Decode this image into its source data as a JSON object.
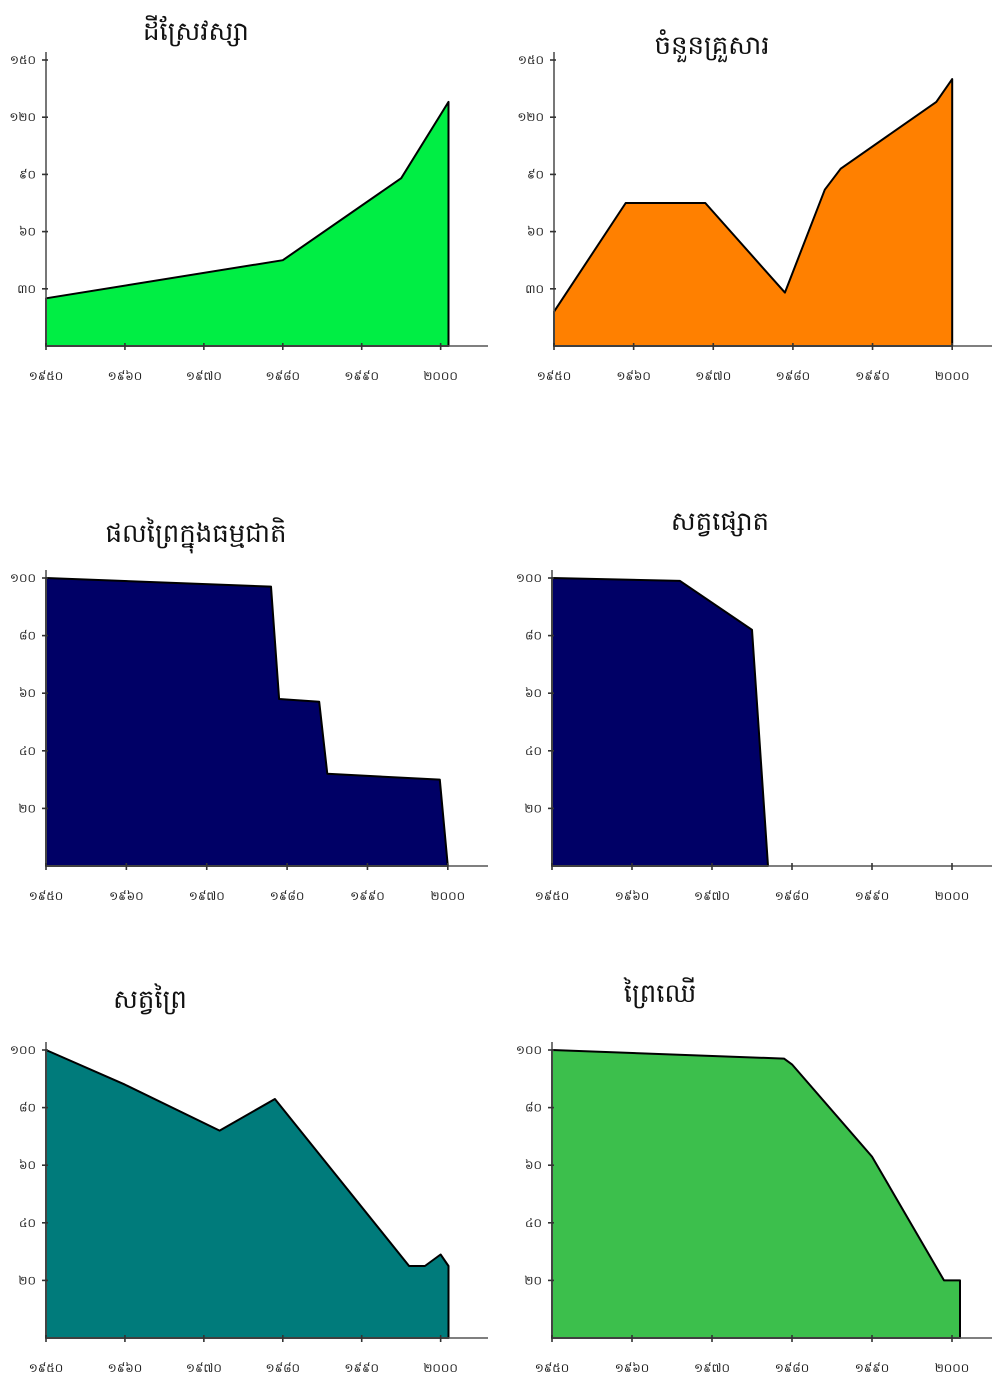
{
  "chart_data": [
    {
      "type": "area",
      "title": "ដីស្រែវស្សា",
      "color": "#00ee44",
      "x_tick_labels": [
        "១៩៥០",
        "១៩៦០",
        "១៩៧០",
        "១៩៨០",
        "១៩៩០",
        "២០០០"
      ],
      "y_tick_labels": [
        "១៥០",
        "១២០",
        "៩០",
        "៦០",
        "៣០"
      ],
      "x": [
        1950,
        1980,
        1995,
        2001,
        2001
      ],
      "y": [
        25,
        45,
        88,
        128,
        0
      ],
      "xlim": [
        1950,
        2006
      ],
      "ylim": [
        0,
        150
      ]
    },
    {
      "type": "area",
      "title": "ចំនួនគ្រួសារ",
      "color": "#ff8000",
      "x_tick_labels": [
        "១៩៥០",
        "១៩៦០",
        "១៩៧០",
        "១៩៨០",
        "១៩៩០",
        "២០០០"
      ],
      "y_tick_labels": [
        "១៥០",
        "១២០",
        "៩០",
        "៦០",
        "៣០"
      ],
      "x": [
        1950,
        1959,
        1969,
        1979,
        1984,
        1986,
        1998,
        2000,
        2000
      ],
      "y": [
        18,
        75,
        75,
        28,
        82,
        93,
        128,
        140,
        0
      ],
      "xlim": [
        1950,
        2005
      ],
      "ylim": [
        0,
        150
      ]
    },
    {
      "type": "area",
      "title": "ផលព្រៃក្នុងធម្មជាតិ",
      "color": "#000066",
      "x_tick_labels": [
        "១៩៥០",
        "១៩៦០",
        "១៩៧០",
        "១៩៨០",
        "១៩៩០",
        "២០០០"
      ],
      "y_tick_labels": [
        "១០០",
        "៨០",
        "៦០",
        "៤០",
        "២០"
      ],
      "x": [
        1950,
        1978,
        1979,
        1984,
        1985,
        1999,
        2000,
        2000
      ],
      "y": [
        100,
        97,
        58,
        57,
        32,
        30,
        0,
        0
      ],
      "xlim": [
        1950,
        2005
      ],
      "ylim": [
        0,
        100
      ]
    },
    {
      "type": "area",
      "title": "សត្វផ្សោត",
      "color": "#000066",
      "x_tick_labels": [
        "១៩៥០",
        "១៩៦០",
        "១៩៧០",
        "១៩៨០",
        "១៩៩០",
        "២០០០"
      ],
      "y_tick_labels": [
        "១០០",
        "៨០",
        "៦០",
        "៤០",
        "២០"
      ],
      "x": [
        1950,
        1966,
        1975,
        1977
      ],
      "y": [
        100,
        99,
        82,
        0
      ],
      "xlim": [
        1950,
        2005
      ],
      "ylim": [
        0,
        100
      ]
    },
    {
      "type": "area",
      "title": "សត្វព្រៃ",
      "color": "#007b7b",
      "x_tick_labels": [
        "១៩៥០",
        "១៩៦០",
        "១៩៧០",
        "១៩៨០",
        "១៩៩០",
        "២០០០"
      ],
      "y_tick_labels": [
        "១០០",
        "៨០",
        "៦០",
        "៤០",
        "២០"
      ],
      "x": [
        1950,
        1960,
        1972,
        1979,
        1996,
        1998,
        2000,
        2001,
        2001
      ],
      "y": [
        100,
        88,
        72,
        83,
        25,
        25,
        29,
        25,
        0
      ],
      "xlim": [
        1950,
        2006
      ],
      "ylim": [
        0,
        100
      ]
    },
    {
      "type": "area",
      "title": "ព្រៃឈើ",
      "color": "#3cbf4c",
      "x_tick_labels": [
        "១៩៥០",
        "១៩៦០",
        "១៩៧០",
        "១៩៨០",
        "១៩៩០",
        "២០០០"
      ],
      "y_tick_labels": [
        "១០០",
        "៨០",
        "៦០",
        "៤០",
        "២០"
      ],
      "x": [
        1950,
        1979,
        1980,
        1990,
        1999,
        2001,
        2001
      ],
      "y": [
        100,
        97,
        95,
        63,
        20,
        20,
        0
      ],
      "xlim": [
        1950,
        2005
      ],
      "ylim": [
        0,
        100
      ]
    }
  ]
}
